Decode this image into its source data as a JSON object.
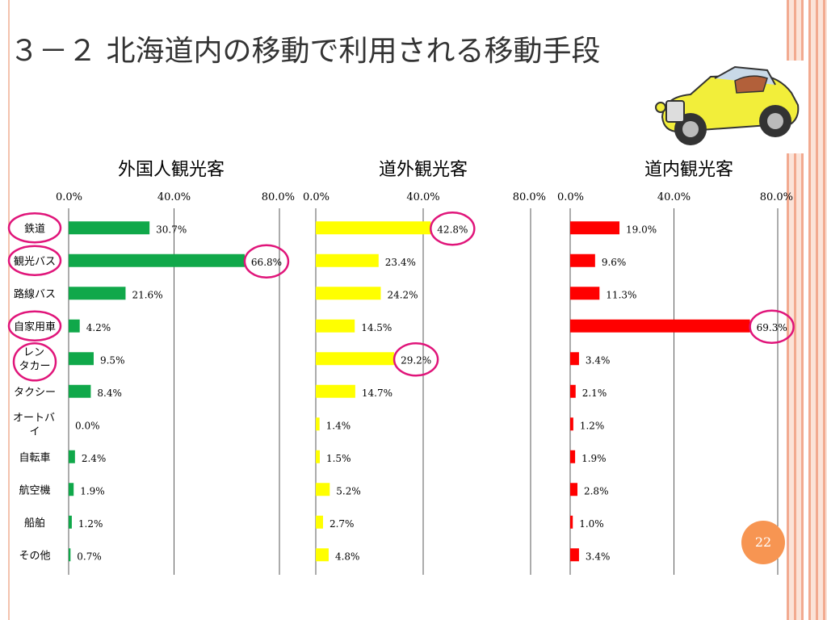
{
  "slide": {
    "title": "３－２ 北海道内の移動で利用される移動手段",
    "page_number": "22"
  },
  "categories": [
    "鉄道",
    "観光バス",
    "路線バス",
    "自家用車",
    "レンタカー",
    "タクシー",
    "オートバイ",
    "自転車",
    "航空機",
    "船舶",
    "その他"
  ],
  "category_labels": [
    [
      "鉄道"
    ],
    [
      "観光バス"
    ],
    [
      "路線バス"
    ],
    [
      "自家用車"
    ],
    [
      "レン",
      "タカー"
    ],
    [
      "タクシー"
    ],
    [
      "オートバ",
      "イ"
    ],
    [
      "自転車"
    ],
    [
      "航空機"
    ],
    [
      "船舶"
    ],
    [
      "その他"
    ]
  ],
  "axis": {
    "min": 0,
    "max": 80,
    "ticks": [
      "0.0%",
      "40.0%",
      "80.0%"
    ]
  },
  "colors": {
    "foreign": "#10a84a",
    "outside": "#ffff00",
    "inside": "#ff0000",
    "highlight": "#e0157a"
  },
  "chart_data": [
    {
      "type": "bar",
      "orientation": "horizontal",
      "title": "外国人観光客",
      "categories": [
        "鉄道",
        "観光バス",
        "路線バス",
        "自家用車",
        "レンタカー",
        "タクシー",
        "オートバイ",
        "自転車",
        "航空機",
        "船舶",
        "その他"
      ],
      "values": [
        30.7,
        66.8,
        21.6,
        4.2,
        9.5,
        8.4,
        0.0,
        2.4,
        1.9,
        1.2,
        0.7
      ],
      "value_labels": [
        "30.7%",
        "66.8%",
        "21.6%",
        "4.2%",
        "9.5%",
        "8.4%",
        "0.0%",
        "2.4%",
        "1.9%",
        "1.2%",
        "0.7%"
      ],
      "xlim": [
        0,
        80
      ],
      "color": "#10a84a",
      "highlighted_values": [
        1
      ],
      "highlighted_categories": [
        0,
        1,
        3,
        4
      ]
    },
    {
      "type": "bar",
      "orientation": "horizontal",
      "title": "道外観光客",
      "categories": [
        "鉄道",
        "観光バス",
        "路線バス",
        "自家用車",
        "レンタカー",
        "タクシー",
        "オートバイ",
        "自転車",
        "航空機",
        "船舶",
        "その他"
      ],
      "values": [
        42.8,
        23.4,
        24.2,
        14.5,
        29.2,
        14.7,
        1.4,
        1.5,
        5.2,
        2.7,
        4.8
      ],
      "value_labels": [
        "42.8%",
        "23.4%",
        "24.2%",
        "14.5%",
        "29.2%",
        "14.7%",
        "1.4%",
        "1.5%",
        "5.2%",
        "2.7%",
        "4.8%"
      ],
      "xlim": [
        0,
        80
      ],
      "color": "#ffff00",
      "highlighted_values": [
        0,
        4
      ]
    },
    {
      "type": "bar",
      "orientation": "horizontal",
      "title": "道内観光客",
      "categories": [
        "鉄道",
        "観光バス",
        "路線バス",
        "自家用車",
        "レンタカー",
        "タクシー",
        "オートバイ",
        "自転車",
        "航空機",
        "船舶",
        "その他"
      ],
      "values": [
        19.0,
        9.6,
        11.3,
        69.3,
        3.4,
        2.1,
        1.2,
        1.9,
        2.8,
        1.0,
        3.4
      ],
      "value_labels": [
        "19.0%",
        "9.6%",
        "11.3%",
        "69.3%",
        "3.4%",
        "2.1%",
        "1.2%",
        "1.9%",
        "2.8%",
        "1.0%",
        "3.4%"
      ],
      "xlim": [
        0,
        80
      ],
      "color": "#ff0000",
      "highlighted_values": [
        3
      ]
    }
  ]
}
